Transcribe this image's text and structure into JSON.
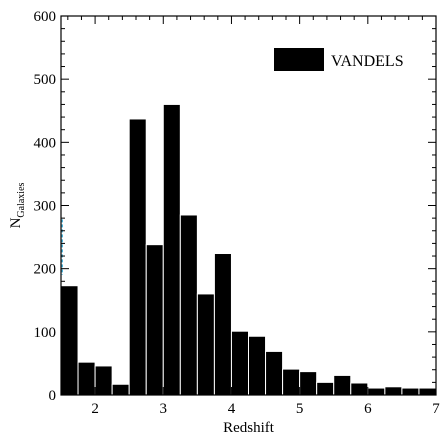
{
  "chart_data": {
    "type": "bar",
    "title": "",
    "xlabel": "Redshift",
    "ylabel_main": "N",
    "ylabel_sub": "Galaxies",
    "xlim": [
      1.5,
      7.0
    ],
    "ylim": [
      0,
      600
    ],
    "x_ticks": [
      2,
      3,
      4,
      5,
      6,
      7
    ],
    "y_ticks": [
      0,
      100,
      200,
      300,
      400,
      500,
      600
    ],
    "bin_width": 0.25,
    "legend_position": "top-right",
    "colors": {
      "bar": "#000000",
      "bar_edge": "#ffffff",
      "marker": "#4fb3d9"
    },
    "series": [
      {
        "name": "VANDELS",
        "bin_starts": [
          1.5,
          1.75,
          2.0,
          2.25,
          2.5,
          2.75,
          3.0,
          3.25,
          3.5,
          3.75,
          4.0,
          4.25,
          4.5,
          4.75,
          5.0,
          5.25,
          5.5,
          5.75,
          6.0,
          6.25,
          6.5,
          6.75
        ],
        "values": [
          173,
          52,
          46,
          17,
          437,
          238,
          460,
          285,
          160,
          224,
          101,
          93,
          69,
          41,
          37,
          20,
          31,
          19,
          11,
          13,
          11,
          11
        ]
      }
    ]
  }
}
